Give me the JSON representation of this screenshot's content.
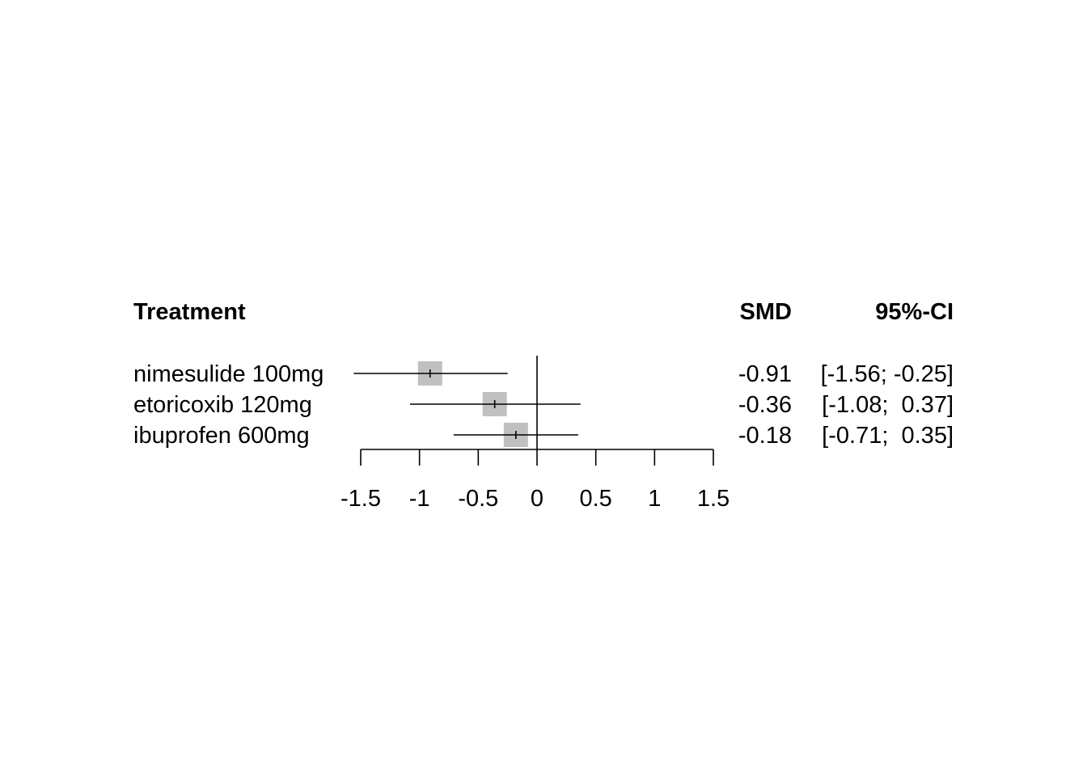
{
  "chart_data": {
    "type": "forest",
    "headers": {
      "treatment": "Treatment",
      "effect": "SMD",
      "ci": "95%-CI"
    },
    "rows": [
      {
        "treatment": "nimesulide 100mg",
        "smd": -0.91,
        "lower": -1.56,
        "upper": -0.25,
        "smd_label": "-0.91",
        "ci_label": "[-1.56; -0.25]"
      },
      {
        "treatment": "etoricoxib 120mg",
        "smd": -0.36,
        "lower": -1.08,
        "upper": 0.37,
        "smd_label": "-0.36",
        "ci_label": "[-1.08;  0.37]"
      },
      {
        "treatment": "ibuprofen 600mg",
        "smd": -0.18,
        "lower": -0.71,
        "upper": 0.35,
        "smd_label": "-0.18",
        "ci_label": "[-0.71;  0.35]"
      }
    ],
    "xlim": [
      -1.5,
      1.5
    ],
    "ticks": [
      -1.5,
      -1,
      -0.5,
      0,
      0.5,
      1,
      1.5
    ],
    "tick_labels": [
      "-1.5",
      "-1",
      "-0.5",
      "0",
      "0.5",
      "1",
      "1.5"
    ],
    "reference_line": 0,
    "colors": {
      "square": "#c0c0c0",
      "line": "#000000"
    }
  }
}
